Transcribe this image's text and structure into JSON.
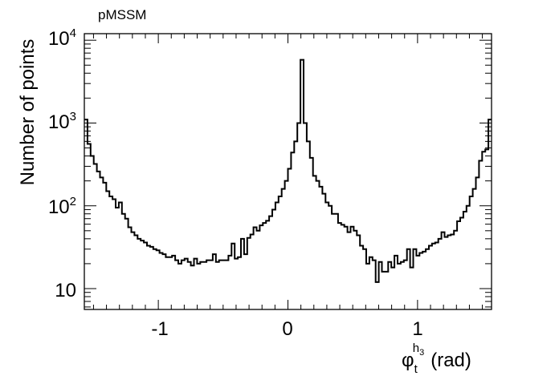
{
  "chart_data": {
    "type": "histogram",
    "title": "pMSSM",
    "ylabel": "Number of points",
    "xlabel": {
      "symbol": "φ",
      "sub": "t",
      "sup_main": "h",
      "sup_sub": "3",
      "unit": "(rad)"
    },
    "xlim": [
      -1.5708,
      1.5708
    ],
    "ylim": [
      5.6,
      12000
    ],
    "yscale": "log",
    "grid": false,
    "legend": "none",
    "x_ticks": [
      {
        "value": -1,
        "label": "-1"
      },
      {
        "value": 0,
        "label": "0"
      },
      {
        "value": 1,
        "label": "1"
      }
    ],
    "y_ticks": [
      {
        "value": 10,
        "base": "10",
        "exp": ""
      },
      {
        "value": 100,
        "base": "10",
        "exp": "2"
      },
      {
        "value": 1000,
        "base": "10",
        "exp": "3"
      },
      {
        "value": 10000,
        "base": "10",
        "exp": "4"
      }
    ],
    "series": [
      {
        "x_min": -1.5708,
        "x_max": 1.5708,
        "line_color": "#000000",
        "bin_counts": [
          1100,
          560,
          400,
          320,
          260,
          220,
          190,
          150,
          130,
          120,
          95,
          110,
          80,
          70,
          55,
          48,
          44,
          40,
          38,
          36,
          33,
          32,
          30,
          29,
          27,
          26,
          24,
          24,
          25,
          22,
          20,
          22,
          23,
          21,
          19,
          23,
          20,
          21,
          21,
          22,
          22,
          26,
          21,
          22,
          22,
          22,
          25,
          35,
          23,
          24,
          40,
          26,
          41,
          45,
          55,
          50,
          58,
          62,
          66,
          75,
          90,
          110,
          130,
          160,
          200,
          280,
          440,
          600,
          1000,
          5800,
          1000,
          600,
          380,
          230,
          200,
          170,
          140,
          110,
          100,
          80,
          80,
          62,
          59,
          56,
          48,
          56,
          50,
          44,
          33,
          30,
          20,
          24,
          22,
          12,
          21,
          16,
          16,
          21,
          18,
          25,
          20,
          21,
          22,
          30,
          18,
          30,
          25,
          27,
          28,
          30,
          33,
          35,
          36,
          40,
          48,
          42,
          44,
          45,
          50,
          65,
          72,
          85,
          100,
          130,
          160,
          220,
          350,
          450,
          480,
          1100
        ]
      }
    ]
  }
}
